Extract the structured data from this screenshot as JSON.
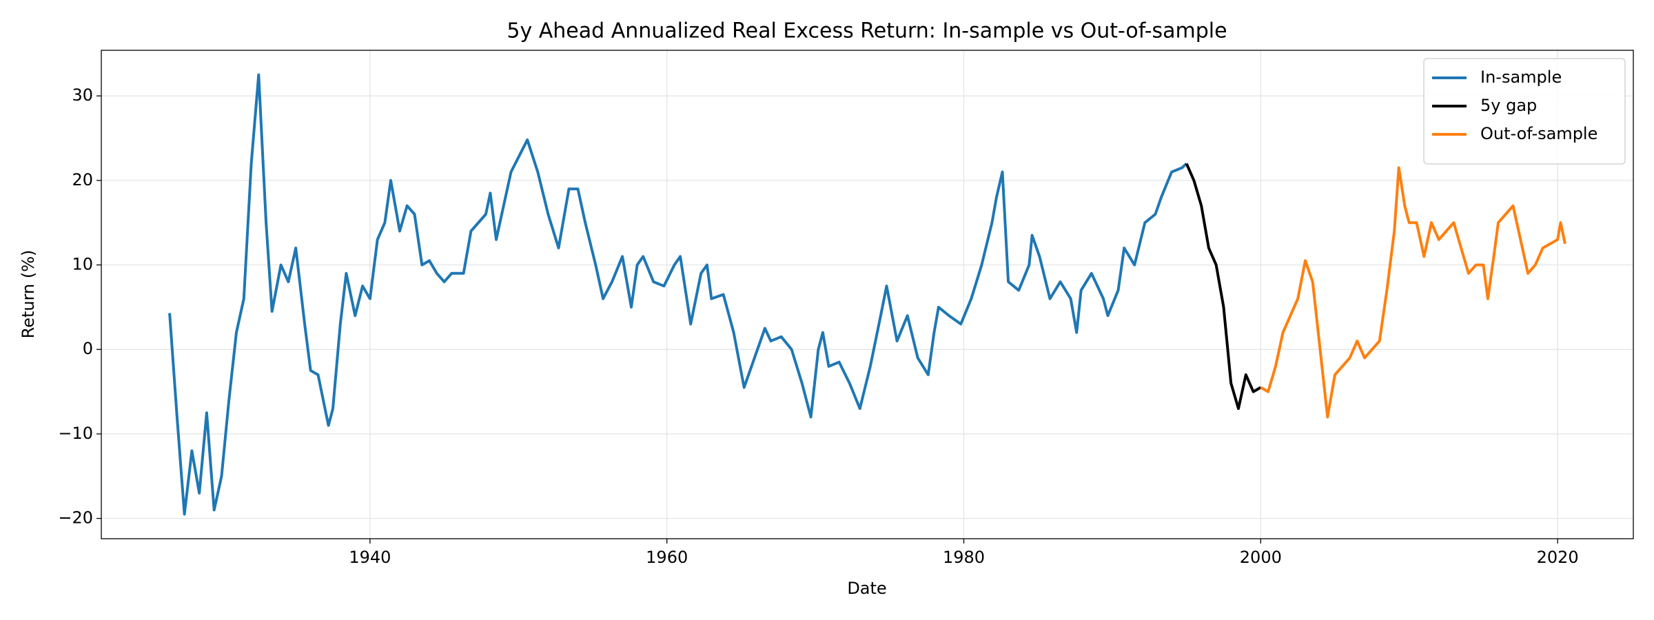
{
  "chart_data": {
    "type": "line",
    "title": "5y Ahead Annualized Real Excess Return: In-sample vs Out-of-sample",
    "xlabel": "Date",
    "ylabel": "Return (%)",
    "xlim": [
      1921.9,
      2025.1
    ],
    "ylim": [
      -22.4,
      35.4
    ],
    "xticks": [
      1940,
      1960,
      1980,
      2000,
      2020
    ],
    "yticks": [
      {
        "value": -20,
        "label": "−20"
      },
      {
        "value": -10,
        "label": "−10"
      },
      0,
      10,
      20,
      30
    ],
    "grid": true,
    "legend": "upper right",
    "series": [
      {
        "name": "In-sample",
        "color": "#1f77b4",
        "x": [
          1926.5,
          1927.0,
          1927.5,
          1928.0,
          1928.5,
          1929.0,
          1929.5,
          1930.0,
          1930.5,
          1931.0,
          1931.5,
          1932.0,
          1932.5,
          1933.0,
          1933.4,
          1934.0,
          1934.5,
          1935.0,
          1935.6,
          1936.0,
          1936.5,
          1937.2,
          1937.5,
          1938.0,
          1938.4,
          1939.0,
          1939.5,
          1940.0,
          1940.5,
          1941.0,
          1941.4,
          1942.0,
          1942.5,
          1943.0,
          1943.5,
          1944.0,
          1944.5,
          1945.0,
          1945.5,
          1946.3,
          1946.8,
          1947.8,
          1948.1,
          1948.5,
          1949.5,
          1950.6,
          1951.3,
          1952.0,
          1952.7,
          1953.4,
          1954.0,
          1954.5,
          1955.2,
          1955.7,
          1956.3,
          1957.0,
          1957.6,
          1958.0,
          1958.4,
          1959.1,
          1959.8,
          1960.5,
          1960.9,
          1961.6,
          1962.3,
          1962.7,
          1963.0,
          1963.8,
          1964.5,
          1965.2,
          1965.9,
          1966.6,
          1967.0,
          1967.7,
          1968.4,
          1969.1,
          1969.7,
          1970.2,
          1970.5,
          1970.9,
          1971.6,
          1972.3,
          1973.0,
          1973.7,
          1974.4,
          1974.8,
          1975.5,
          1976.2,
          1976.9,
          1977.6,
          1978.0,
          1978.3,
          1979.0,
          1979.8,
          1980.5,
          1981.2,
          1981.9,
          1982.2,
          1982.6,
          1983.0,
          1983.7,
          1984.4,
          1984.6,
          1985.1,
          1985.8,
          1986.5,
          1987.2,
          1987.6,
          1987.9,
          1988.6,
          1989.4,
          1989.7,
          1990.4,
          1990.8,
          1991.5,
          1992.2,
          1992.9,
          1993.3,
          1994.0,
          1994.7,
          1995.0
        ],
        "values": [
          4.3,
          -8,
          -19.5,
          -12,
          -17,
          -7.5,
          -19,
          -15,
          -6,
          2,
          6,
          22,
          32.5,
          15,
          4.5,
          10,
          8,
          12,
          3,
          -2.5,
          -3,
          -9,
          -7,
          3,
          9,
          4,
          7.5,
          6,
          13,
          15,
          20,
          14,
          17,
          16,
          10,
          10.5,
          9,
          8,
          9,
          9,
          14,
          16,
          18.5,
          13,
          21,
          24.8,
          21,
          16,
          12,
          19,
          19,
          15,
          10,
          6,
          8,
          11,
          5,
          10,
          11,
          8,
          7.5,
          10,
          11,
          3,
          9,
          10,
          6,
          6.5,
          2,
          -4.5,
          -1,
          2.5,
          1,
          1.5,
          0,
          -4,
          -8,
          0,
          2,
          -2,
          -1.5,
          -4,
          -7,
          -2,
          4,
          7.5,
          1,
          4,
          -1,
          -3,
          2,
          5,
          4,
          3,
          6,
          10,
          15,
          18,
          21,
          8,
          7,
          10,
          13.5,
          11,
          6,
          8,
          6,
          2,
          7,
          9,
          6,
          4,
          7,
          12,
          10,
          15,
          16,
          18,
          21,
          21.5,
          22
        ]
      },
      {
        "name": "5y gap",
        "color": "#000000",
        "x": [
          1995.0,
          1995.5,
          1996.0,
          1996.5,
          1997.0,
          1997.5,
          1998.0,
          1998.5,
          1999.0,
          1999.5,
          2000.0
        ],
        "values": [
          22,
          20,
          17,
          12,
          10,
          5,
          -4,
          -7,
          -3,
          -5,
          -4.5
        ]
      },
      {
        "name": "Out-of-sample",
        "color": "#ff7f0e",
        "x": [
          2000.0,
          2000.5,
          2001.0,
          2001.5,
          2002.0,
          2002.5,
          2003.0,
          2003.5,
          2004.0,
          2004.5,
          2005.0,
          2005.5,
          2006.0,
          2006.5,
          2007.0,
          2007.5,
          2008.0,
          2008.5,
          2009.0,
          2009.3,
          2009.7,
          2010.0,
          2010.5,
          2011.0,
          2011.5,
          2012.0,
          2012.5,
          2013.0,
          2013.5,
          2014.0,
          2014.5,
          2015.0,
          2015.3,
          2015.7,
          2016.0,
          2016.5,
          2017.0,
          2017.5,
          2018.0,
          2018.5,
          2019.0,
          2019.5,
          2020.0,
          2020.2,
          2020.5
        ],
        "values": [
          -4.5,
          -5,
          -2,
          2,
          4,
          6,
          10.5,
          8,
          0,
          -8,
          -3,
          -2,
          -1,
          1,
          -1,
          0,
          1,
          7,
          14,
          21.5,
          17,
          15,
          15,
          11,
          15,
          13,
          14,
          15,
          12,
          9,
          10,
          10,
          6,
          11,
          15,
          16,
          17,
          13,
          9,
          10,
          12,
          12.5,
          13,
          15,
          12.5
        ]
      }
    ]
  }
}
